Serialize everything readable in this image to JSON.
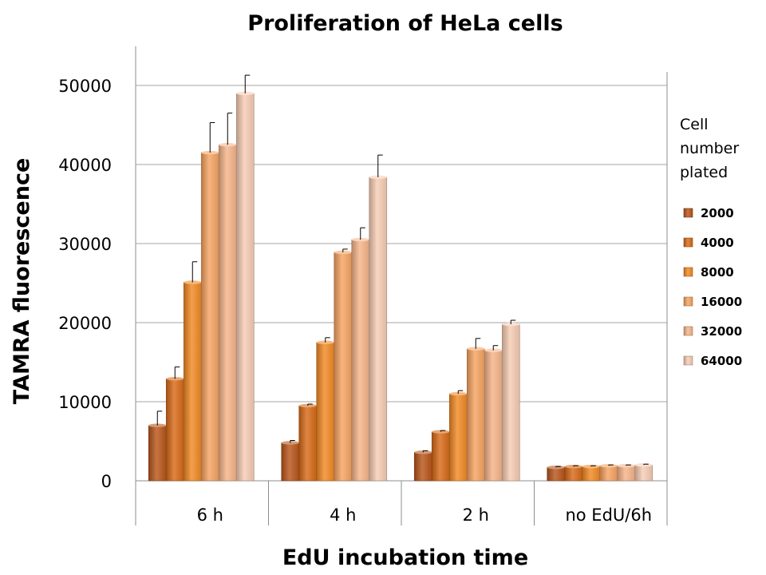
{
  "chart_data": {
    "type": "bar",
    "title": "Proliferation of HeLa cells",
    "xlabel": "EdU incubation time",
    "ylabel": "TAMRA fluorescence",
    "ylim": [
      0,
      55000
    ],
    "yticks": [
      0,
      10000,
      20000,
      30000,
      40000,
      50000
    ],
    "grid": true,
    "legend_title": "Cell number plated",
    "legend_position": "right",
    "categories": [
      "6 h",
      "4 h",
      "2 h",
      "no EdU/6h"
    ],
    "series": [
      {
        "name": "2000",
        "color": "#b9561b",
        "values": [
          7000,
          4800,
          3600,
          1700
        ],
        "errors": [
          1800,
          300,
          200,
          100
        ]
      },
      {
        "name": "4000",
        "color": "#d86a18",
        "values": [
          12900,
          9500,
          6200,
          1800
        ],
        "errors": [
          1500,
          200,
          150,
          100
        ]
      },
      {
        "name": "8000",
        "color": "#f28a25",
        "values": [
          25100,
          17500,
          11000,
          1800
        ],
        "errors": [
          2600,
          600,
          400,
          100
        ]
      },
      {
        "name": "16000",
        "color": "#f6a462",
        "values": [
          41500,
          28900,
          16700,
          1900
        ],
        "errors": [
          3800,
          400,
          1300,
          100
        ]
      },
      {
        "name": "32000",
        "color": "#f7b58a",
        "values": [
          42500,
          30500,
          16500,
          1900
        ],
        "errors": [
          4000,
          1500,
          600,
          100
        ]
      },
      {
        "name": "64000",
        "color": "#f7cdb5",
        "values": [
          49000,
          38400,
          19800,
          2000
        ],
        "errors": [
          2300,
          2800,
          500,
          100
        ]
      }
    ]
  }
}
